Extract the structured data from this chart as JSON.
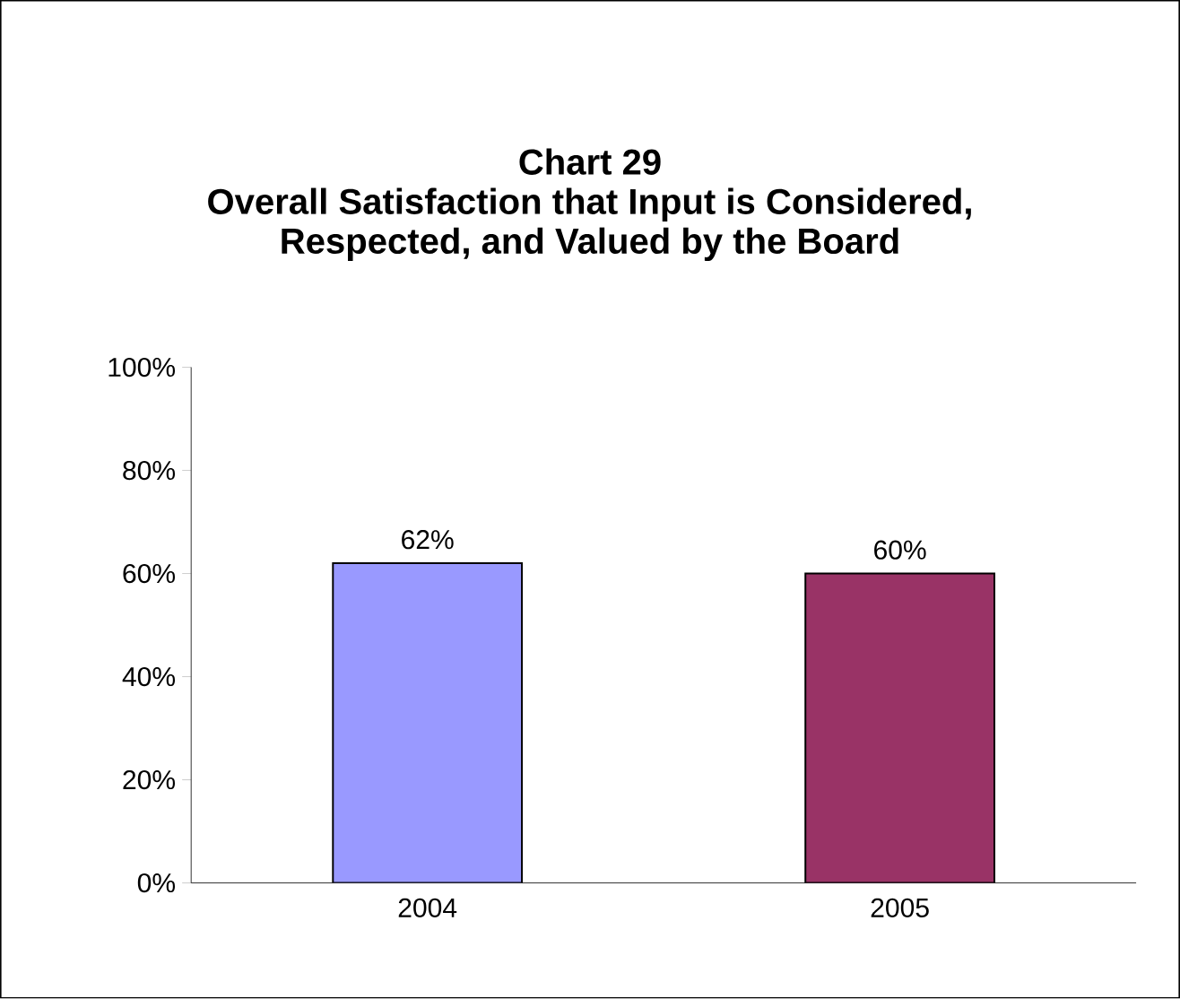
{
  "chart_data": {
    "type": "bar",
    "title": "Chart 29",
    "subtitle": "Overall Satisfaction that Input is Considered, Respected, and Valued by the Board",
    "categories": [
      "2004",
      "2005"
    ],
    "values": [
      62,
      60
    ],
    "colors": [
      "#9999ff",
      "#993366"
    ],
    "value_labels": [
      "62%",
      "60%"
    ],
    "ylim": [
      0,
      100
    ],
    "yticks": [
      {
        "value": 0,
        "label": "0%"
      },
      {
        "value": 20,
        "label": "20%"
      },
      {
        "value": 40,
        "label": "40%"
      },
      {
        "value": 60,
        "label": "60%"
      },
      {
        "value": 80,
        "label": "80%"
      },
      {
        "value": 100,
        "label": "100%"
      }
    ],
    "grid": false
  }
}
